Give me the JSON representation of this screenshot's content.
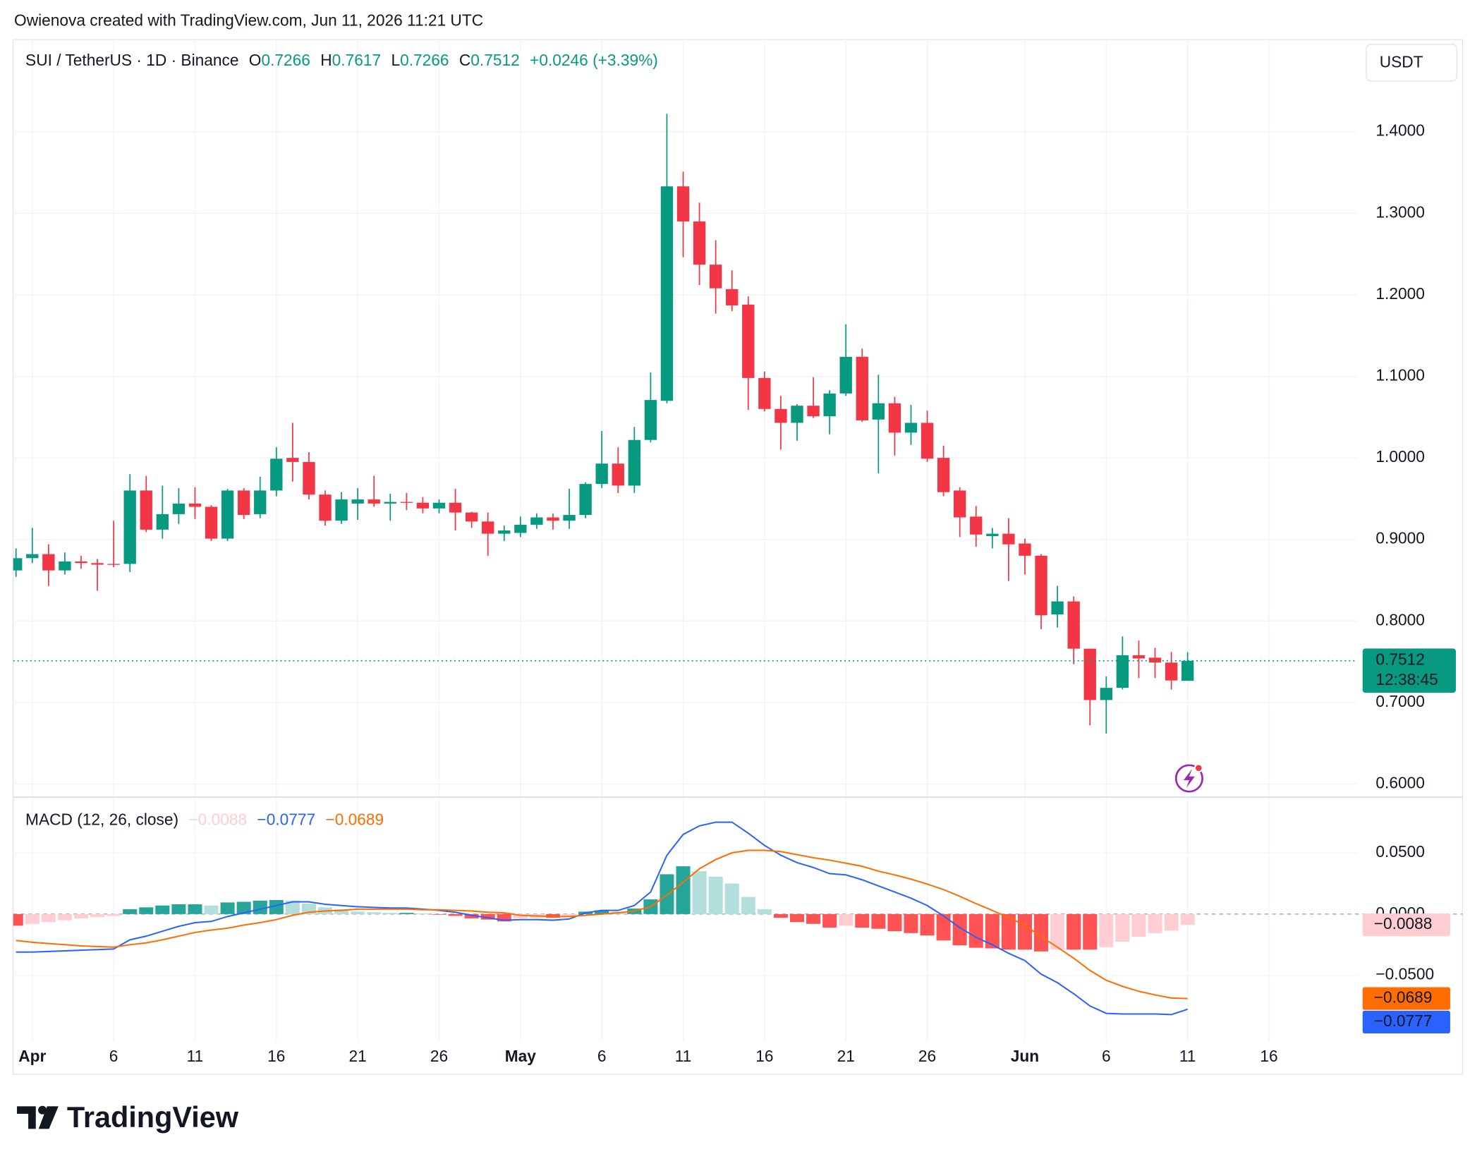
{
  "attribution": "Owienova created with TradingView.com, Jun 11, 2026 11:21 UTC",
  "brand": "TradingView",
  "chart_data": [
    {
      "type": "candlestick",
      "legend": {
        "symbol": "SUI / TetherUS · 1D · Binance",
        "o": "O",
        "h": "H",
        "l": "L",
        "c": "C",
        "change": "+0.0246 (+3.39%)"
      },
      "currency": "USDT",
      "countdown": "12:38:45",
      "up_color": "#089981",
      "down_color": "#f23645",
      "grid": true,
      "x": [
        "2026-03-31",
        "2026-04-01",
        "2026-04-02",
        "2026-04-03",
        "2026-04-04",
        "2026-04-05",
        "2026-04-06",
        "2026-04-07",
        "2026-04-08",
        "2026-04-09",
        "2026-04-10",
        "2026-04-11",
        "2026-04-12",
        "2026-04-13",
        "2026-04-14",
        "2026-04-15",
        "2026-04-16",
        "2026-04-17",
        "2026-04-18",
        "2026-04-19",
        "2026-04-20",
        "2026-04-21",
        "2026-04-22",
        "2026-04-23",
        "2026-04-24",
        "2026-04-25",
        "2026-04-26",
        "2026-04-27",
        "2026-04-28",
        "2026-04-29",
        "2026-04-30",
        "2026-05-01",
        "2026-05-02",
        "2026-05-03",
        "2026-05-04",
        "2026-05-05",
        "2026-05-06",
        "2026-05-07",
        "2026-05-08",
        "2026-05-09",
        "2026-05-10",
        "2026-05-11",
        "2026-05-12",
        "2026-05-13",
        "2026-05-14",
        "2026-05-15",
        "2026-05-16",
        "2026-05-17",
        "2026-05-18",
        "2026-05-19",
        "2026-05-20",
        "2026-05-21",
        "2026-05-22",
        "2026-05-23",
        "2026-05-24",
        "2026-05-25",
        "2026-05-26",
        "2026-05-27",
        "2026-05-28",
        "2026-05-29",
        "2026-05-30",
        "2026-05-31",
        "2026-06-01",
        "2026-06-02",
        "2026-06-03",
        "2026-06-04",
        "2026-06-05",
        "2026-06-06",
        "2026-06-07",
        "2026-06-08",
        "2026-06-09",
        "2026-06-10",
        "2026-06-11"
      ],
      "open": [
        0.862,
        0.877,
        0.882,
        0.862,
        0.873,
        0.871,
        0.87,
        0.87,
        0.96,
        0.912,
        0.931,
        0.944,
        0.94,
        0.901,
        0.96,
        0.931,
        0.96,
        1.0,
        0.995,
        0.955,
        0.923,
        0.944,
        0.949,
        0.944,
        0.946,
        0.945,
        0.938,
        0.945,
        0.933,
        0.922,
        0.907,
        0.908,
        0.918,
        0.927,
        0.923,
        0.93,
        0.968,
        0.993,
        0.966,
        1.022,
        1.07,
        1.333,
        1.29,
        1.237,
        1.207,
        1.188,
        1.098,
        1.06,
        1.043,
        1.064,
        1.051,
        1.079,
        1.124,
        1.047,
        1.067,
        1.031,
        1.043,
        1.0,
        0.96,
        0.928,
        0.904,
        0.907,
        0.895,
        0.88,
        0.808,
        0.824,
        0.766,
        0.703,
        0.718,
        0.758,
        0.755,
        0.749,
        0.7266
      ],
      "high": [
        0.889,
        0.914,
        0.894,
        0.884,
        0.88,
        0.876,
        0.923,
        0.98,
        0.978,
        0.966,
        0.963,
        0.964,
        0.942,
        0.962,
        0.963,
        0.977,
        1.013,
        1.043,
        1.007,
        0.96,
        0.958,
        0.963,
        0.978,
        0.956,
        0.957,
        0.952,
        0.949,
        0.962,
        0.934,
        0.933,
        0.917,
        0.928,
        0.932,
        0.932,
        0.962,
        0.97,
        1.033,
        1.013,
        1.038,
        1.105,
        1.422,
        1.351,
        1.313,
        1.267,
        1.23,
        1.198,
        1.106,
        1.076,
        1.066,
        1.099,
        1.083,
        1.164,
        1.134,
        1.102,
        1.075,
        1.065,
        1.058,
        1.015,
        0.964,
        0.941,
        0.914,
        0.926,
        0.901,
        0.882,
        0.843,
        0.83,
        0.766,
        0.732,
        0.781,
        0.776,
        0.767,
        0.762,
        0.7617
      ],
      "low": [
        0.854,
        0.871,
        0.843,
        0.857,
        0.864,
        0.837,
        0.866,
        0.86,
        0.909,
        0.901,
        0.919,
        0.925,
        0.898,
        0.898,
        0.925,
        0.926,
        0.953,
        0.971,
        0.949,
        0.917,
        0.919,
        0.924,
        0.94,
        0.923,
        0.936,
        0.932,
        0.932,
        0.911,
        0.914,
        0.88,
        0.898,
        0.903,
        0.913,
        0.912,
        0.913,
        0.926,
        0.963,
        0.957,
        0.957,
        1.019,
        1.067,
        1.246,
        1.212,
        1.177,
        1.18,
        1.059,
        1.057,
        1.01,
        1.021,
        1.049,
        1.029,
        1.076,
        1.044,
        0.981,
        1.003,
        1.016,
        0.995,
        0.953,
        0.903,
        0.891,
        0.889,
        0.849,
        0.857,
        0.79,
        0.792,
        0.747,
        0.672,
        0.662,
        0.716,
        0.73,
        0.73,
        0.716,
        0.7266
      ],
      "close": [
        0.877,
        0.882,
        0.862,
        0.873,
        0.871,
        0.869,
        0.869,
        0.96,
        0.912,
        0.931,
        0.944,
        0.94,
        0.901,
        0.96,
        0.93,
        0.96,
        0.999,
        0.995,
        0.955,
        0.923,
        0.949,
        0.949,
        0.944,
        0.946,
        0.945,
        0.938,
        0.945,
        0.933,
        0.922,
        0.907,
        0.911,
        0.918,
        0.927,
        0.923,
        0.93,
        0.968,
        0.993,
        0.966,
        1.022,
        1.071,
        1.333,
        1.29,
        1.237,
        1.208,
        1.187,
        1.098,
        1.06,
        1.043,
        1.064,
        1.051,
        1.079,
        1.124,
        1.046,
        1.067,
        1.031,
        1.043,
        0.999,
        0.958,
        0.927,
        0.906,
        0.907,
        0.894,
        0.88,
        0.807,
        0.824,
        0.766,
        0.703,
        0.718,
        0.758,
        0.754,
        0.749,
        0.727,
        0.7512
      ],
      "xlim": [
        "2026-03-31",
        "2026-06-21"
      ],
      "ylim": [
        0.585,
        1.513
      ],
      "yticks": [
        {
          "value": 0.6,
          "label": "0.6000"
        },
        {
          "value": 0.7,
          "label": "0.7000"
        },
        {
          "value": 0.8,
          "label": "0.8000"
        },
        {
          "value": 0.9,
          "label": "0.9000"
        },
        {
          "value": 1.0,
          "label": "1.0000"
        },
        {
          "value": 1.1,
          "label": "1.1000"
        },
        {
          "value": 1.2,
          "label": "1.2000"
        },
        {
          "value": 1.3,
          "label": "1.3000"
        },
        {
          "value": 1.4,
          "label": "1.4000"
        }
      ]
    },
    {
      "type": "macd",
      "title": "MACD (12, 26, close)",
      "grid": true,
      "x": [
        "2026-03-31",
        "2026-04-01",
        "2026-04-02",
        "2026-04-03",
        "2026-04-04",
        "2026-04-05",
        "2026-04-06",
        "2026-04-07",
        "2026-04-08",
        "2026-04-09",
        "2026-04-10",
        "2026-04-11",
        "2026-04-12",
        "2026-04-13",
        "2026-04-14",
        "2026-04-15",
        "2026-04-16",
        "2026-04-17",
        "2026-04-18",
        "2026-04-19",
        "2026-04-20",
        "2026-04-21",
        "2026-04-22",
        "2026-04-23",
        "2026-04-24",
        "2026-04-25",
        "2026-04-26",
        "2026-04-27",
        "2026-04-28",
        "2026-04-29",
        "2026-04-30",
        "2026-05-01",
        "2026-05-02",
        "2026-05-03",
        "2026-05-04",
        "2026-05-05",
        "2026-05-06",
        "2026-05-07",
        "2026-05-08",
        "2026-05-09",
        "2026-05-10",
        "2026-05-11",
        "2026-05-12",
        "2026-05-13",
        "2026-05-14",
        "2026-05-15",
        "2026-05-16",
        "2026-05-17",
        "2026-05-18",
        "2026-05-19",
        "2026-05-20",
        "2026-05-21",
        "2026-05-22",
        "2026-05-23",
        "2026-05-24",
        "2026-05-25",
        "2026-05-26",
        "2026-05-27",
        "2026-05-28",
        "2026-05-29",
        "2026-05-30",
        "2026-05-31",
        "2026-06-01",
        "2026-06-02",
        "2026-06-03",
        "2026-06-04",
        "2026-06-05",
        "2026-06-06",
        "2026-06-07",
        "2026-06-08",
        "2026-06-09",
        "2026-06-10",
        "2026-06-11"
      ],
      "histogram": {
        "values": [
          -0.0095,
          -0.008,
          -0.0065,
          -0.005,
          -0.0035,
          -0.0025,
          -0.0015,
          0.004,
          0.0055,
          0.007,
          0.008,
          0.008,
          0.007,
          0.0095,
          0.01,
          0.011,
          0.0115,
          0.011,
          0.0085,
          0.0055,
          0.004,
          0.002,
          0.0015,
          0.001,
          0.001,
          0.0005,
          -0.0005,
          -0.0015,
          -0.0035,
          -0.0045,
          -0.006,
          -0.0035,
          -0.003,
          -0.003,
          -0.002,
          0.002,
          0.003,
          0.002,
          0.0045,
          0.012,
          0.0325,
          0.039,
          0.035,
          0.0305,
          0.025,
          0.014,
          0.004,
          -0.003,
          -0.0065,
          -0.008,
          -0.011,
          -0.0095,
          -0.011,
          -0.012,
          -0.014,
          -0.0155,
          -0.0175,
          -0.0215,
          -0.0255,
          -0.0275,
          -0.028,
          -0.029,
          -0.029,
          -0.0305,
          -0.029,
          -0.029,
          -0.029,
          -0.027,
          -0.0225,
          -0.0185,
          -0.0155,
          -0.0135,
          -0.0088
        ],
        "last_label": "−0.0088",
        "colors": [
          "#26a69a",
          "#b2dfdb",
          "#ff5252",
          "#ffcdd2"
        ]
      },
      "macd": {
        "values": [
          -0.031,
          -0.031,
          -0.0305,
          -0.03,
          -0.0295,
          -0.029,
          -0.0285,
          -0.021,
          -0.018,
          -0.014,
          -0.01,
          -0.007,
          -0.006,
          -0.002,
          0.001,
          0.004,
          0.007,
          0.01,
          0.01,
          0.008,
          0.007,
          0.006,
          0.0055,
          0.005,
          0.005,
          0.004,
          0.003,
          0.0015,
          -0.001,
          -0.003,
          -0.005,
          -0.0045,
          -0.0045,
          -0.005,
          -0.004,
          0.001,
          0.003,
          0.003,
          0.007,
          0.018,
          0.048,
          0.065,
          0.072,
          0.075,
          0.075,
          0.066,
          0.056,
          0.048,
          0.042,
          0.038,
          0.033,
          0.032,
          0.028,
          0.023,
          0.018,
          0.013,
          0.007,
          -0.0015,
          -0.011,
          -0.019,
          -0.025,
          -0.032,
          -0.038,
          -0.049,
          -0.056,
          -0.065,
          -0.075,
          -0.081,
          -0.0815,
          -0.0815,
          -0.0815,
          -0.082,
          -0.0777
        ],
        "last_label": "−0.0777",
        "color": "#2962ff"
      },
      "signal": {
        "values": [
          -0.0215,
          -0.023,
          -0.024,
          -0.025,
          -0.026,
          -0.0265,
          -0.027,
          -0.025,
          -0.0235,
          -0.021,
          -0.018,
          -0.015,
          -0.013,
          -0.0115,
          -0.009,
          -0.007,
          -0.0045,
          -0.001,
          0.0015,
          0.0025,
          0.003,
          0.004,
          0.004,
          0.004,
          0.004,
          0.0035,
          0.0035,
          0.003,
          0.0025,
          0.0015,
          0.001,
          -0.001,
          -0.0015,
          -0.002,
          -0.002,
          -0.001,
          0,
          0.001,
          0.0025,
          0.006,
          0.0155,
          0.026,
          0.037,
          0.0445,
          0.05,
          0.052,
          0.052,
          0.051,
          0.0485,
          0.046,
          0.044,
          0.0415,
          0.039,
          0.035,
          0.032,
          0.0285,
          0.0245,
          0.02,
          0.0145,
          0.0085,
          0.003,
          -0.003,
          -0.009,
          -0.0185,
          -0.027,
          -0.036,
          -0.046,
          -0.054,
          -0.059,
          -0.063,
          -0.066,
          -0.0685,
          -0.0689
        ],
        "last_label": "−0.0689",
        "color": "#ff6d00"
      },
      "xlim": [
        "2026-03-31",
        "2026-06-21"
      ],
      "ylim": [
        -0.1038,
        0.0946
      ],
      "yticks": [
        {
          "value": -0.05,
          "label": "−0.0500"
        },
        {
          "value": 0,
          "label": "0.0000"
        },
        {
          "value": 0.05,
          "label": "0.0500"
        }
      ],
      "xticks": [
        {
          "value": "2026-04-01",
          "label": "Apr"
        },
        {
          "value": "2026-04-06",
          "label": "6"
        },
        {
          "value": "2026-04-11",
          "label": "11"
        },
        {
          "value": "2026-04-16",
          "label": "16"
        },
        {
          "value": "2026-04-21",
          "label": "21"
        },
        {
          "value": "2026-04-26",
          "label": "26"
        },
        {
          "value": "2026-05-01",
          "label": "May"
        },
        {
          "value": "2026-05-06",
          "label": "6"
        },
        {
          "value": "2026-05-11",
          "label": "11"
        },
        {
          "value": "2026-05-16",
          "label": "16"
        },
        {
          "value": "2026-05-21",
          "label": "21"
        },
        {
          "value": "2026-05-26",
          "label": "26"
        },
        {
          "value": "2026-06-01",
          "label": "Jun"
        },
        {
          "value": "2026-06-06",
          "label": "6"
        },
        {
          "value": "2026-06-11",
          "label": "11"
        },
        {
          "value": "2026-06-16",
          "label": "16"
        }
      ]
    }
  ]
}
